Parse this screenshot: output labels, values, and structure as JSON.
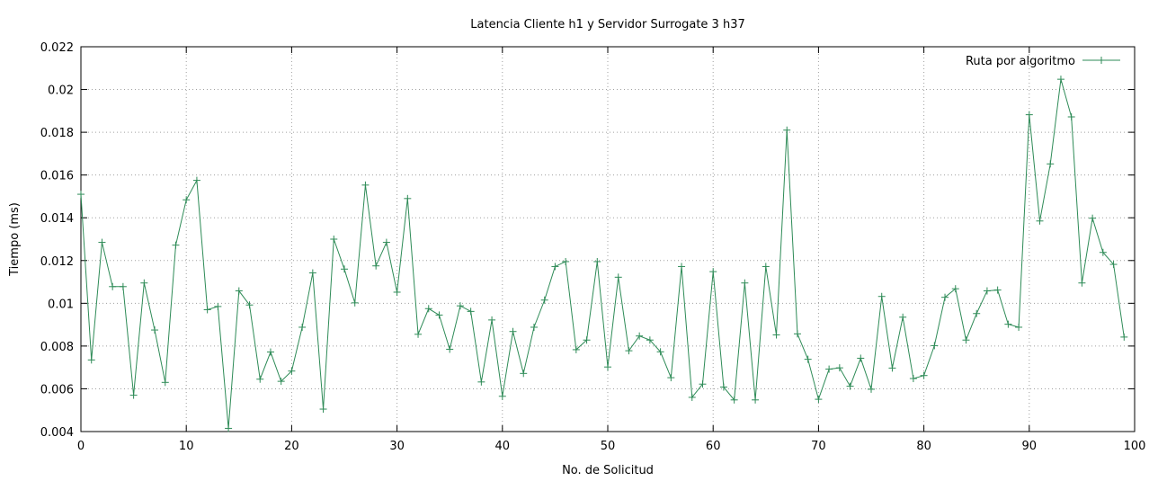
{
  "chart_data": {
    "type": "line",
    "title": "Latencia Cliente h1 y Servidor Surrogate 3 h37",
    "xlabel": "No. de Solicitud",
    "ylabel": "Tiempo (ms)",
    "xlim": [
      0,
      100
    ],
    "ylim": [
      0.004,
      0.022
    ],
    "xticks": [
      0,
      10,
      20,
      30,
      40,
      50,
      60,
      70,
      80,
      90,
      100
    ],
    "yticks": [
      0.004,
      0.006,
      0.008,
      0.01,
      0.012,
      0.014,
      0.016,
      0.018,
      0.02,
      0.022
    ],
    "ytick_labels": [
      "0.004",
      "0.006",
      "0.008",
      "0.01",
      "0.012",
      "0.014",
      "0.016",
      "0.018",
      "0.02",
      "0.022"
    ],
    "grid": true,
    "legend_position": "top-right",
    "line_color": "#2e8b57",
    "series": [
      {
        "name": "Ruta por algoritmo",
        "x": [
          0,
          1,
          2,
          3,
          4,
          5,
          6,
          7,
          8,
          9,
          10,
          11,
          12,
          13,
          14,
          15,
          16,
          17,
          18,
          19,
          20,
          21,
          22,
          23,
          24,
          25,
          26,
          27,
          28,
          29,
          30,
          31,
          32,
          33,
          34,
          35,
          36,
          37,
          38,
          39,
          40,
          41,
          42,
          43,
          44,
          45,
          46,
          47,
          48,
          49,
          50,
          51,
          52,
          53,
          54,
          55,
          56,
          57,
          58,
          59,
          60,
          61,
          62,
          63,
          64,
          65,
          66,
          67,
          68,
          69,
          70,
          71,
          72,
          73,
          74,
          75,
          76,
          77,
          78,
          79,
          80,
          81,
          82,
          83,
          84,
          85,
          86,
          87,
          88,
          89,
          90,
          91,
          92,
          93,
          94,
          95,
          96,
          97,
          98,
          99
        ],
        "values": [
          0.0151,
          0.00735,
          0.01285,
          0.01078,
          0.01078,
          0.0057,
          0.01095,
          0.00875,
          0.0063,
          0.01272,
          0.01484,
          0.01575,
          0.0097,
          0.00985,
          0.00415,
          0.01058,
          0.00992,
          0.00645,
          0.00772,
          0.00635,
          0.00683,
          0.00888,
          0.01142,
          0.00505,
          0.013,
          0.0116,
          0.01002,
          0.01553,
          0.01175,
          0.01285,
          0.01052,
          0.0149,
          0.00855,
          0.00975,
          0.00945,
          0.00785,
          0.00988,
          0.00962,
          0.00632,
          0.00922,
          0.00565,
          0.00868,
          0.00672,
          0.00888,
          0.01015,
          0.01172,
          0.01195,
          0.00783,
          0.00828,
          0.01195,
          0.00702,
          0.01122,
          0.00778,
          0.00847,
          0.00828,
          0.00773,
          0.00652,
          0.01172,
          0.0056,
          0.00622,
          0.01148,
          0.00608,
          0.00548,
          0.01095,
          0.00548,
          0.01172,
          0.00852,
          0.0181,
          0.00857,
          0.00738,
          0.00551,
          0.00692,
          0.00698,
          0.00612,
          0.00743,
          0.00598,
          0.01032,
          0.00697,
          0.00935,
          0.00648,
          0.00662,
          0.00802,
          0.01028,
          0.01068,
          0.00828,
          0.00952,
          0.01058,
          0.01062,
          0.00902,
          0.00888,
          0.01882,
          0.01385,
          0.01652,
          0.02048,
          0.01872,
          0.01095,
          0.01398,
          0.01238,
          0.01182,
          0.00842
        ]
      }
    ]
  }
}
